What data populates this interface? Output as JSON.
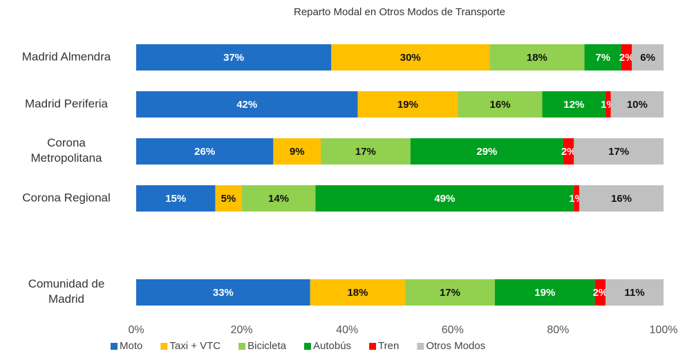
{
  "chart_data": {
    "type": "stacked_bar_horizontal",
    "title": "Reparto Modal en Otros Modos de Transporte",
    "categories": [
      "Madrid Almendra",
      "Madrid Periferia",
      "Corona\nMetropolitana",
      "Corona Regional",
      null,
      "Comunidad de\nMadrid"
    ],
    "series": [
      {
        "name": "Moto",
        "color": "#1f6fc6",
        "values": [
          37,
          42,
          26,
          15,
          null,
          33
        ],
        "value_labels": [
          "37%",
          "42%",
          "26%",
          "15%",
          null,
          "33%"
        ]
      },
      {
        "name": "Taxi + VTC",
        "color": "#ffc000",
        "values": [
          30,
          19,
          9,
          5,
          null,
          18
        ],
        "value_labels": [
          "30%",
          "19%",
          "9%",
          "5%",
          null,
          "18%"
        ]
      },
      {
        "name": "Bicicleta",
        "color": "#92d050",
        "values": [
          18,
          16,
          17,
          14,
          null,
          17
        ],
        "value_labels": [
          "18%",
          "16%",
          "17%",
          "14%",
          null,
          "17%"
        ]
      },
      {
        "name": "Autobús",
        "color": "#00a020",
        "values": [
          7,
          12,
          29,
          49,
          null,
          19
        ],
        "value_labels": [
          "7%",
          "12%",
          "29%",
          "49%",
          null,
          "19%"
        ]
      },
      {
        "name": "Tren",
        "color": "#ff0000",
        "values": [
          2,
          1,
          2,
          1,
          null,
          2
        ],
        "value_labels": [
          "2%",
          "1%",
          "2%",
          "1%",
          null,
          "2%"
        ]
      },
      {
        "name": "Otros Modos",
        "color": "#c0c0c0",
        "values": [
          6,
          10,
          17,
          16,
          null,
          11
        ],
        "value_labels": [
          "6%",
          "10%",
          "17%",
          "16%",
          null,
          "11%"
        ]
      }
    ],
    "xlim": [
      0,
      100
    ],
    "xticks": [
      {
        "value": 0,
        "label": "0%"
      },
      {
        "value": 20,
        "label": "20%"
      },
      {
        "value": 40,
        "label": "40%"
      },
      {
        "value": 60,
        "label": "60%"
      },
      {
        "value": 80,
        "label": "80%"
      },
      {
        "value": 100,
        "label": "100%"
      }
    ],
    "legend": "bottom"
  }
}
